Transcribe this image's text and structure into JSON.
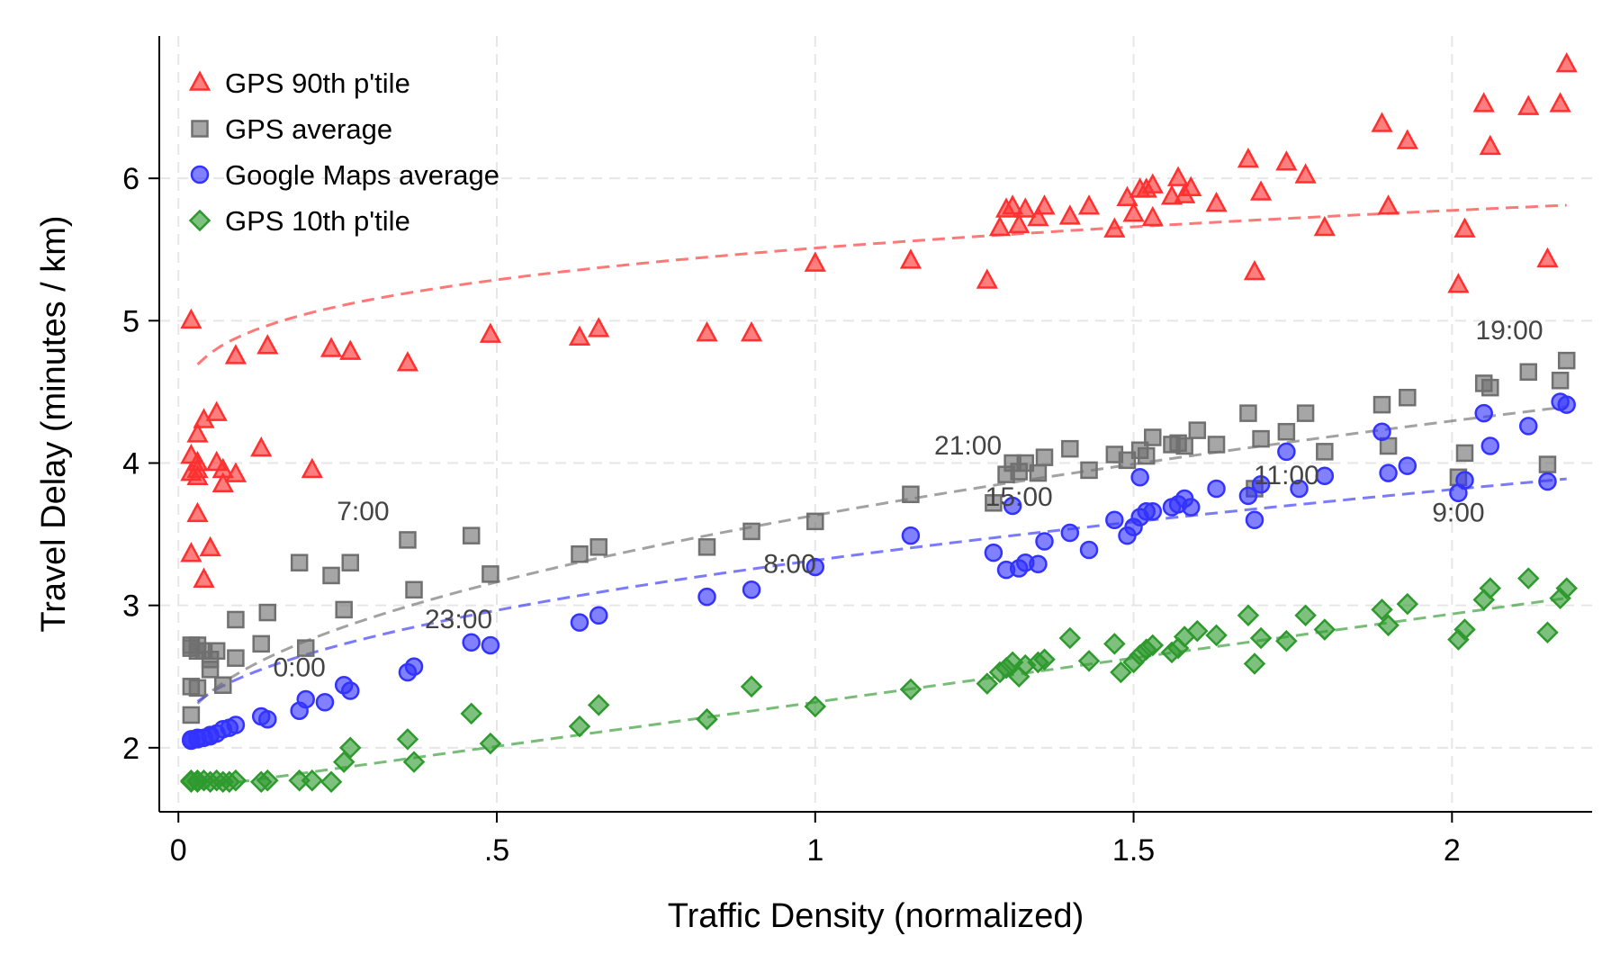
{
  "chart_data": {
    "type": "scatter",
    "xlabel": "Traffic Density (normalized)",
    "ylabel": "Travel Delay (minutes / km)",
    "xlim": [
      -0.03,
      2.22
    ],
    "ylim": [
      1.55,
      7.0
    ],
    "x_ticks": [
      0,
      0.5,
      1,
      1.5,
      2
    ],
    "x_tick_labels": [
      "0",
      ".5",
      "1",
      "1.5",
      "2"
    ],
    "y_ticks": [
      2,
      3,
      4,
      5,
      6
    ],
    "y_tick_labels": [
      "2",
      "3",
      "4",
      "5",
      "6"
    ],
    "grid": true,
    "legend_position": "top-left",
    "series": [
      {
        "name": "GPS 90th p'tile",
        "marker": "triangle",
        "color": "#ff3030",
        "trend": {
          "a": 5.51,
          "b": 0.35,
          "c": 0.25
        },
        "points": [
          [
            0.02,
            5.0
          ],
          [
            0.02,
            4.05
          ],
          [
            0.02,
            3.93
          ],
          [
            0.02,
            3.36
          ],
          [
            0.03,
            3.64
          ],
          [
            0.03,
            3.95
          ],
          [
            0.03,
            3.9
          ],
          [
            0.03,
            4.0
          ],
          [
            0.03,
            4.2
          ],
          [
            0.04,
            4.3
          ],
          [
            0.04,
            3.18
          ],
          [
            0.05,
            3.4
          ],
          [
            0.06,
            4.35
          ],
          [
            0.06,
            4.0
          ],
          [
            0.07,
            3.85
          ],
          [
            0.07,
            3.95
          ],
          [
            0.09,
            3.92
          ],
          [
            0.09,
            4.75
          ],
          [
            0.13,
            4.1
          ],
          [
            0.14,
            4.82
          ],
          [
            0.21,
            3.95
          ],
          [
            0.24,
            4.8
          ],
          [
            0.27,
            4.78
          ],
          [
            0.36,
            4.7
          ],
          [
            0.49,
            4.9
          ],
          [
            0.63,
            4.88
          ],
          [
            0.66,
            4.94
          ],
          [
            0.83,
            4.91
          ],
          [
            0.9,
            4.91
          ],
          [
            1.0,
            5.4
          ],
          [
            1.15,
            5.42
          ],
          [
            1.27,
            5.28
          ],
          [
            1.29,
            5.65
          ],
          [
            1.3,
            5.78
          ],
          [
            1.31,
            5.8
          ],
          [
            1.32,
            5.67
          ],
          [
            1.33,
            5.78
          ],
          [
            1.35,
            5.72
          ],
          [
            1.36,
            5.8
          ],
          [
            1.4,
            5.73
          ],
          [
            1.43,
            5.8
          ],
          [
            1.47,
            5.64
          ],
          [
            1.49,
            5.86
          ],
          [
            1.5,
            5.75
          ],
          [
            1.51,
            5.92
          ],
          [
            1.52,
            5.92
          ],
          [
            1.53,
            5.95
          ],
          [
            1.53,
            5.72
          ],
          [
            1.56,
            5.87
          ],
          [
            1.57,
            6.0
          ],
          [
            1.58,
            5.88
          ],
          [
            1.59,
            5.93
          ],
          [
            1.63,
            5.82
          ],
          [
            1.68,
            6.13
          ],
          [
            1.69,
            5.34
          ],
          [
            1.7,
            5.9
          ],
          [
            1.74,
            6.11
          ],
          [
            1.77,
            6.02
          ],
          [
            1.8,
            5.65
          ],
          [
            1.89,
            6.38
          ],
          [
            1.9,
            5.8
          ],
          [
            1.93,
            6.26
          ],
          [
            2.01,
            5.25
          ],
          [
            2.02,
            5.64
          ],
          [
            2.05,
            6.52
          ],
          [
            2.06,
            6.22
          ],
          [
            2.12,
            6.5
          ],
          [
            2.15,
            5.43
          ],
          [
            2.17,
            6.52
          ],
          [
            2.18,
            6.8
          ]
        ]
      },
      {
        "name": "GPS average",
        "marker": "square",
        "color": "#707070",
        "trend": {
          "a": 3.633,
          "b": 0.8,
          "c": 0.5
        },
        "points": [
          [
            0.02,
            2.72
          ],
          [
            0.02,
            2.7
          ],
          [
            0.02,
            2.43
          ],
          [
            0.02,
            2.23
          ],
          [
            0.03,
            2.72
          ],
          [
            0.03,
            2.68
          ],
          [
            0.03,
            2.42
          ],
          [
            0.04,
            2.68
          ],
          [
            0.05,
            2.55
          ],
          [
            0.05,
            2.62
          ],
          [
            0.06,
            2.68
          ],
          [
            0.07,
            2.44
          ],
          [
            0.09,
            2.63
          ],
          [
            0.09,
            2.9
          ],
          [
            0.13,
            2.73
          ],
          [
            0.14,
            2.95
          ],
          [
            0.19,
            3.3
          ],
          [
            0.2,
            2.7
          ],
          [
            0.24,
            3.21
          ],
          [
            0.26,
            2.97
          ],
          [
            0.27,
            3.3
          ],
          [
            0.36,
            3.46
          ],
          [
            0.37,
            3.11
          ],
          [
            0.46,
            3.49
          ],
          [
            0.49,
            3.22
          ],
          [
            0.63,
            3.36
          ],
          [
            0.66,
            3.41
          ],
          [
            0.83,
            3.41
          ],
          [
            0.9,
            3.52
          ],
          [
            1.0,
            3.59
          ],
          [
            1.15,
            3.78
          ],
          [
            1.28,
            3.72
          ],
          [
            1.3,
            3.92
          ],
          [
            1.31,
            4.0
          ],
          [
            1.32,
            3.94
          ],
          [
            1.33,
            4.0
          ],
          [
            1.35,
            3.93
          ],
          [
            1.36,
            4.04
          ],
          [
            1.4,
            4.1
          ],
          [
            1.43,
            3.95
          ],
          [
            1.47,
            4.06
          ],
          [
            1.49,
            4.02
          ],
          [
            1.51,
            4.09
          ],
          [
            1.52,
            4.05
          ],
          [
            1.53,
            4.18
          ],
          [
            1.56,
            4.13
          ],
          [
            1.57,
            4.14
          ],
          [
            1.58,
            4.12
          ],
          [
            1.6,
            4.23
          ],
          [
            1.63,
            4.13
          ],
          [
            1.68,
            4.35
          ],
          [
            1.69,
            3.82
          ],
          [
            1.7,
            4.17
          ],
          [
            1.74,
            4.22
          ],
          [
            1.77,
            4.35
          ],
          [
            1.8,
            4.08
          ],
          [
            1.89,
            4.41
          ],
          [
            1.9,
            4.12
          ],
          [
            1.93,
            4.46
          ],
          [
            2.01,
            3.9
          ],
          [
            2.02,
            4.07
          ],
          [
            2.05,
            4.56
          ],
          [
            2.06,
            4.53
          ],
          [
            2.12,
            4.64
          ],
          [
            2.15,
            3.99
          ],
          [
            2.17,
            4.58
          ],
          [
            2.18,
            4.72
          ]
        ]
      },
      {
        "name": "Google Maps average",
        "marker": "circle",
        "color": "#3333ff",
        "trend": {
          "a": 3.317,
          "b": 0.6,
          "c": 0.5
        },
        "points": [
          [
            0.02,
            2.05
          ],
          [
            0.02,
            2.05
          ],
          [
            0.02,
            2.06
          ],
          [
            0.03,
            2.06
          ],
          [
            0.03,
            2.07
          ],
          [
            0.04,
            2.07
          ],
          [
            0.05,
            2.08
          ],
          [
            0.05,
            2.09
          ],
          [
            0.06,
            2.1
          ],
          [
            0.07,
            2.13
          ],
          [
            0.08,
            2.14
          ],
          [
            0.09,
            2.16
          ],
          [
            0.13,
            2.22
          ],
          [
            0.14,
            2.2
          ],
          [
            0.19,
            2.26
          ],
          [
            0.2,
            2.34
          ],
          [
            0.23,
            2.32
          ],
          [
            0.26,
            2.44
          ],
          [
            0.27,
            2.4
          ],
          [
            0.36,
            2.53
          ],
          [
            0.37,
            2.57
          ],
          [
            0.46,
            2.74
          ],
          [
            0.49,
            2.72
          ],
          [
            0.63,
            2.88
          ],
          [
            0.66,
            2.93
          ],
          [
            0.83,
            3.06
          ],
          [
            0.9,
            3.11
          ],
          [
            1.0,
            3.27
          ],
          [
            1.15,
            3.49
          ],
          [
            1.28,
            3.37
          ],
          [
            1.3,
            3.25
          ],
          [
            1.31,
            3.7
          ],
          [
            1.32,
            3.26
          ],
          [
            1.33,
            3.3
          ],
          [
            1.35,
            3.29
          ],
          [
            1.36,
            3.45
          ],
          [
            1.4,
            3.51
          ],
          [
            1.43,
            3.39
          ],
          [
            1.47,
            3.6
          ],
          [
            1.49,
            3.49
          ],
          [
            1.5,
            3.55
          ],
          [
            1.51,
            3.62
          ],
          [
            1.51,
            3.9
          ],
          [
            1.52,
            3.66
          ],
          [
            1.53,
            3.66
          ],
          [
            1.56,
            3.69
          ],
          [
            1.57,
            3.71
          ],
          [
            1.58,
            3.75
          ],
          [
            1.59,
            3.69
          ],
          [
            1.63,
            3.82
          ],
          [
            1.68,
            3.77
          ],
          [
            1.69,
            3.6
          ],
          [
            1.7,
            3.85
          ],
          [
            1.74,
            4.08
          ],
          [
            1.76,
            3.82
          ],
          [
            1.8,
            3.91
          ],
          [
            1.89,
            4.22
          ],
          [
            1.9,
            3.93
          ],
          [
            1.93,
            3.98
          ],
          [
            2.01,
            3.79
          ],
          [
            2.02,
            3.88
          ],
          [
            2.05,
            4.35
          ],
          [
            2.06,
            4.12
          ],
          [
            2.12,
            4.26
          ],
          [
            2.15,
            3.87
          ],
          [
            2.17,
            4.43
          ],
          [
            2.18,
            4.41
          ]
        ]
      },
      {
        "name": "GPS 10th p'tile",
        "marker": "diamond",
        "color": "#2e9a2e",
        "trend": {
          "a": 1.7,
          "b": 0.62,
          "c": 1.0
        },
        "points": [
          [
            0.02,
            1.77
          ],
          [
            0.02,
            1.76
          ],
          [
            0.03,
            1.77
          ],
          [
            0.03,
            1.76
          ],
          [
            0.04,
            1.77
          ],
          [
            0.05,
            1.76
          ],
          [
            0.06,
            1.77
          ],
          [
            0.07,
            1.76
          ],
          [
            0.08,
            1.76
          ],
          [
            0.09,
            1.77
          ],
          [
            0.13,
            1.76
          ],
          [
            0.14,
            1.77
          ],
          [
            0.19,
            1.77
          ],
          [
            0.21,
            1.77
          ],
          [
            0.24,
            1.76
          ],
          [
            0.26,
            1.9
          ],
          [
            0.27,
            2.0
          ],
          [
            0.36,
            2.06
          ],
          [
            0.37,
            1.9
          ],
          [
            0.46,
            2.24
          ],
          [
            0.49,
            2.03
          ],
          [
            0.63,
            2.15
          ],
          [
            0.66,
            2.3
          ],
          [
            0.83,
            2.2
          ],
          [
            0.9,
            2.43
          ],
          [
            1.0,
            2.29
          ],
          [
            1.15,
            2.41
          ],
          [
            1.27,
            2.45
          ],
          [
            1.29,
            2.53
          ],
          [
            1.3,
            2.56
          ],
          [
            1.31,
            2.6
          ],
          [
            1.32,
            2.5
          ],
          [
            1.33,
            2.58
          ],
          [
            1.35,
            2.6
          ],
          [
            1.36,
            2.62
          ],
          [
            1.4,
            2.77
          ],
          [
            1.43,
            2.61
          ],
          [
            1.47,
            2.73
          ],
          [
            1.48,
            2.53
          ],
          [
            1.5,
            2.6
          ],
          [
            1.51,
            2.65
          ],
          [
            1.52,
            2.69
          ],
          [
            1.53,
            2.72
          ],
          [
            1.56,
            2.67
          ],
          [
            1.57,
            2.7
          ],
          [
            1.58,
            2.78
          ],
          [
            1.6,
            2.82
          ],
          [
            1.63,
            2.79
          ],
          [
            1.68,
            2.93
          ],
          [
            1.69,
            2.59
          ],
          [
            1.7,
            2.77
          ],
          [
            1.74,
            2.75
          ],
          [
            1.77,
            2.93
          ],
          [
            1.8,
            2.83
          ],
          [
            1.89,
            2.97
          ],
          [
            1.9,
            2.86
          ],
          [
            1.93,
            3.01
          ],
          [
            2.01,
            2.76
          ],
          [
            2.02,
            2.83
          ],
          [
            2.05,
            3.04
          ],
          [
            2.06,
            3.12
          ],
          [
            2.12,
            3.19
          ],
          [
            2.15,
            2.81
          ],
          [
            2.17,
            3.05
          ],
          [
            2.18,
            3.12
          ]
        ]
      }
    ],
    "annotations": [
      {
        "text": "19:00",
        "x": 2.09,
        "y": 4.87
      },
      {
        "text": "21:00",
        "x": 1.24,
        "y": 4.06
      },
      {
        "text": "15:00",
        "x": 1.32,
        "y": 3.7
      },
      {
        "text": "11:00",
        "x": 1.74,
        "y": 3.85
      },
      {
        "text": "9:00",
        "x": 2.01,
        "y": 3.59
      },
      {
        "text": "7:00",
        "x": 0.29,
        "y": 3.6
      },
      {
        "text": "8:00",
        "x": 0.96,
        "y": 3.23
      },
      {
        "text": "23:00",
        "x": 0.44,
        "y": 2.84
      },
      {
        "text": "0:00",
        "x": 0.19,
        "y": 2.5
      }
    ]
  }
}
